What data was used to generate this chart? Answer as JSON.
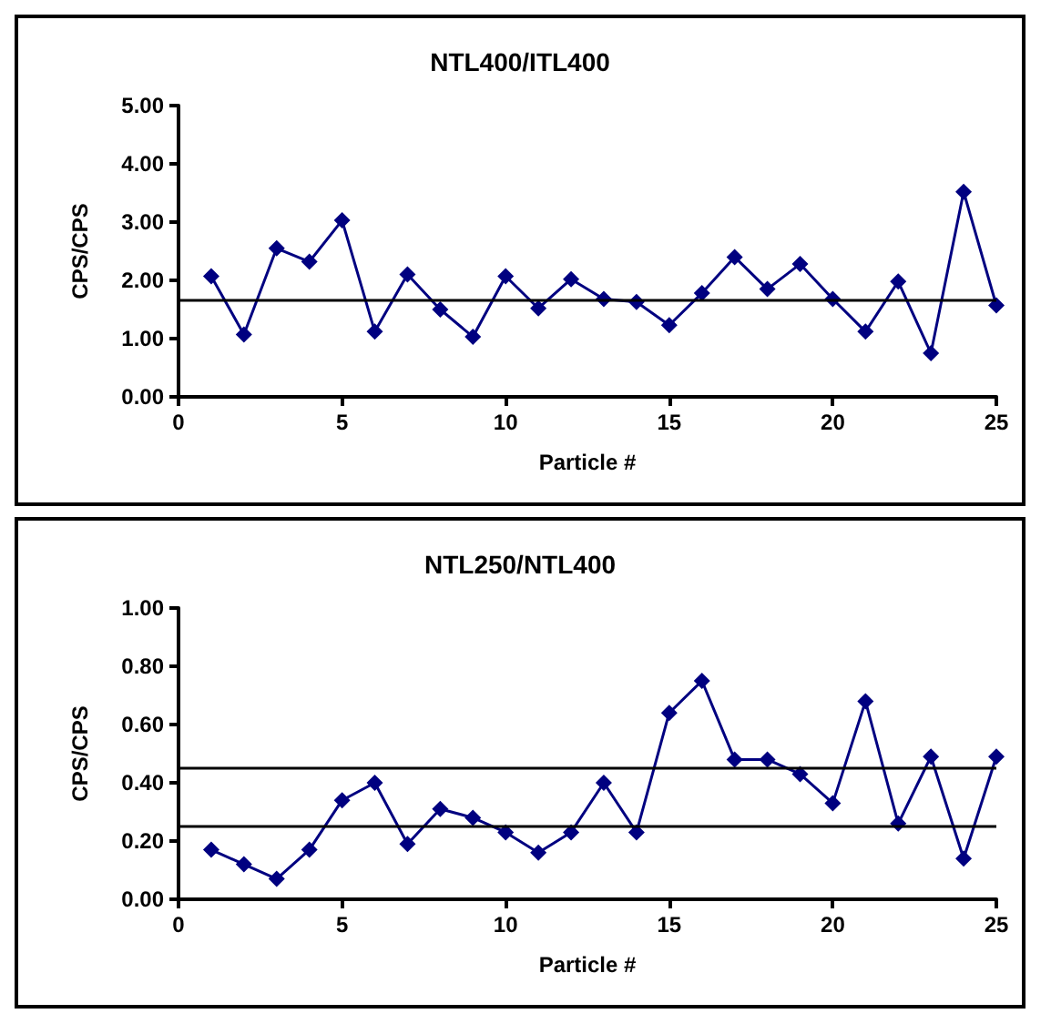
{
  "chart_data": [
    {
      "type": "line",
      "title": "NTL400/ITL400",
      "xlabel": "Particle #",
      "ylabel": "CPS/CPS",
      "marker": "diamond",
      "line_style": "solid",
      "grid": false,
      "x": [
        1,
        2,
        3,
        4,
        5,
        6,
        7,
        8,
        9,
        10,
        11,
        12,
        13,
        14,
        15,
        16,
        17,
        18,
        19,
        20,
        21,
        22,
        23,
        24,
        25
      ],
      "series": [
        {
          "color": "#000080",
          "values": [
            2.07,
            1.07,
            2.55,
            2.32,
            3.03,
            1.12,
            2.1,
            1.5,
            1.03,
            2.07,
            1.52,
            2.02,
            1.68,
            1.63,
            1.23,
            1.78,
            2.4,
            1.85,
            2.28,
            1.68,
            1.12,
            1.98,
            0.75,
            3.52,
            1.57
          ]
        }
      ],
      "xlim": [
        0,
        25
      ],
      "xticks": [
        0,
        5,
        10,
        15,
        20,
        25
      ],
      "ylim": [
        0,
        5
      ],
      "yticks": [
        {
          "value": 0,
          "label": "0.00"
        },
        {
          "value": 1,
          "label": "1.00"
        },
        {
          "value": 2,
          "label": "2.00"
        },
        {
          "value": 3,
          "label": "3.00"
        },
        {
          "value": 4,
          "label": "4.00"
        },
        {
          "value": 5,
          "label": "5.00"
        }
      ],
      "ref_lines": [
        {
          "axis": "y",
          "value": 1.67,
          "color": "#000000"
        }
      ]
    },
    {
      "type": "line",
      "title": "NTL250/NTL400",
      "xlabel": "Particle #",
      "ylabel": "CPS/CPS",
      "marker": "diamond",
      "line_style": "solid",
      "grid": false,
      "x": [
        1,
        2,
        3,
        4,
        5,
        6,
        7,
        8,
        9,
        10,
        11,
        12,
        13,
        14,
        15,
        16,
        17,
        18,
        19,
        20,
        21,
        22,
        23,
        24,
        25
      ],
      "series": [
        {
          "color": "#000080",
          "values": [
            0.17,
            0.12,
            0.07,
            0.17,
            0.34,
            0.4,
            0.19,
            0.31,
            0.28,
            0.23,
            0.16,
            0.23,
            0.4,
            0.23,
            0.64,
            0.75,
            0.48,
            0.48,
            0.43,
            0.33,
            0.68,
            0.26,
            0.49,
            0.14,
            0.49
          ]
        }
      ],
      "xlim": [
        0,
        25
      ],
      "xticks": [
        0,
        5,
        10,
        15,
        20,
        25
      ],
      "ylim": [
        0,
        1
      ],
      "yticks": [
        {
          "value": 0,
          "label": "0.00"
        },
        {
          "value": 0.2,
          "label": "0.20"
        },
        {
          "value": 0.4,
          "label": "0.40"
        },
        {
          "value": 0.6,
          "label": "0.60"
        },
        {
          "value": 0.8,
          "label": "0.80"
        },
        {
          "value": 1,
          "label": "1.00"
        }
      ],
      "ref_lines": [
        {
          "axis": "y",
          "value": 0.45,
          "color": "#000000"
        },
        {
          "axis": "y",
          "value": 0.25,
          "color": "#000000"
        }
      ]
    }
  ]
}
